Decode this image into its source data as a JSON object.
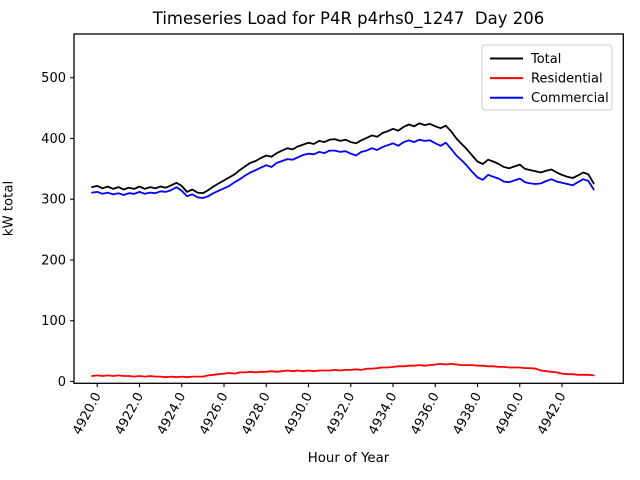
{
  "figure": {
    "title": "Timeseries Load for P4R p4rhs0_1247  Day 206",
    "xlabel": "Hour of Year",
    "ylabel": "kW total"
  },
  "chart_data": {
    "type": "line",
    "title": "Timeseries Load for P4R p4rhs0_1247  Day 206",
    "xlabel": "Hour of Year",
    "ylabel": "kW total",
    "xlim": [
      4918.9,
      4944.9
    ],
    "ylim": [
      -3,
      572
    ],
    "grid": false,
    "legend_position": "upper right",
    "yticks": [
      0,
      100,
      200,
      300,
      400,
      500
    ],
    "xticks": [
      4920,
      4922,
      4924,
      4926,
      4928,
      4930,
      4932,
      4934,
      4936,
      4938,
      4940,
      4942
    ],
    "xtick_labels": [
      "4920.0",
      "4922.0",
      "4924.0",
      "4926.0",
      "4928.0",
      "4930.0",
      "4932.0",
      "4934.0",
      "4936.0",
      "4938.0",
      "4940.0",
      "4942.0"
    ],
    "x": [
      4919.75,
      4920.0,
      4920.25,
      4920.5,
      4920.75,
      4921.0,
      4921.25,
      4921.5,
      4921.75,
      4922.0,
      4922.25,
      4922.5,
      4922.75,
      4923.0,
      4923.25,
      4923.5,
      4923.75,
      4924.0,
      4924.25,
      4924.5,
      4924.75,
      4925.0,
      4925.25,
      4925.5,
      4925.75,
      4926.0,
      4926.25,
      4926.5,
      4926.75,
      4927.0,
      4927.25,
      4927.5,
      4927.75,
      4928.0,
      4928.25,
      4928.5,
      4928.75,
      4929.0,
      4929.25,
      4929.5,
      4929.75,
      4930.0,
      4930.25,
      4930.5,
      4930.75,
      4931.0,
      4931.25,
      4931.5,
      4931.75,
      4932.0,
      4932.25,
      4932.5,
      4932.75,
      4933.0,
      4933.25,
      4933.5,
      4933.75,
      4934.0,
      4934.25,
      4934.5,
      4934.75,
      4935.0,
      4935.25,
      4935.5,
      4935.75,
      4936.0,
      4936.25,
      4936.5,
      4936.75,
      4937.0,
      4937.25,
      4937.5,
      4937.75,
      4938.0,
      4938.25,
      4938.5,
      4938.75,
      4939.0,
      4939.25,
      4939.5,
      4939.75,
      4940.0,
      4940.25,
      4940.5,
      4940.75,
      4941.0,
      4941.25,
      4941.5,
      4941.75,
      4942.0,
      4942.25,
      4942.5,
      4942.75,
      4943.0,
      4943.25,
      4943.5
    ],
    "series": [
      {
        "name": "Total",
        "color": "#000000",
        "values": [
          320,
          322,
          318,
          321,
          317,
          320,
          316,
          319,
          317,
          321,
          317,
          320,
          318,
          321,
          319,
          323,
          327,
          322,
          312,
          316,
          311,
          310,
          315,
          321,
          326,
          331,
          336,
          341,
          348,
          354,
          360,
          363,
          368,
          372,
          370,
          376,
          380,
          384,
          382,
          387,
          390,
          393,
          391,
          396,
          394,
          398,
          399,
          396,
          398,
          394,
          392,
          397,
          401,
          405,
          403,
          409,
          412,
          416,
          413,
          419,
          423,
          420,
          425,
          422,
          424,
          420,
          417,
          421,
          412,
          400,
          391,
          382,
          372,
          362,
          358,
          365,
          362,
          358,
          353,
          351,
          354,
          357,
          350,
          348,
          346,
          344,
          347,
          349,
          344,
          340,
          337,
          335,
          339,
          344,
          341,
          326
        ]
      },
      {
        "name": "Residential",
        "color": "#ff0000",
        "values": [
          9,
          10,
          9,
          10,
          9,
          10,
          9,
          9,
          8,
          9,
          8,
          9,
          8,
          8,
          7,
          8,
          7,
          8,
          7,
          8,
          8,
          8,
          10,
          11,
          12,
          13,
          14,
          13,
          15,
          15,
          16,
          15,
          16,
          16,
          17,
          16,
          17,
          18,
          17,
          18,
          17,
          18,
          17,
          18,
          18,
          18,
          19,
          18,
          19,
          19,
          20,
          19,
          21,
          21,
          22,
          23,
          23,
          24,
          25,
          25,
          26,
          26,
          27,
          26,
          27,
          28,
          29,
          28,
          29,
          28,
          27,
          27,
          27,
          26,
          26,
          25,
          25,
          24,
          24,
          23,
          23,
          23,
          22,
          22,
          21,
          18,
          17,
          16,
          15,
          13,
          12,
          12,
          11,
          11,
          11,
          10
        ]
      },
      {
        "name": "Commercial",
        "color": "#0000ff",
        "values": [
          311,
          312,
          309,
          311,
          308,
          310,
          307,
          310,
          309,
          312,
          309,
          311,
          310,
          313,
          312,
          315,
          320,
          314,
          305,
          308,
          303,
          302,
          305,
          310,
          314,
          318,
          322,
          328,
          333,
          339,
          344,
          348,
          352,
          356,
          353,
          360,
          363,
          366,
          365,
          369,
          373,
          375,
          374,
          378,
          376,
          380,
          380,
          378,
          379,
          375,
          372,
          378,
          380,
          384,
          381,
          386,
          389,
          392,
          388,
          394,
          397,
          394,
          398,
          396,
          397,
          392,
          388,
          393,
          383,
          372,
          364,
          355,
          345,
          336,
          332,
          340,
          337,
          334,
          329,
          328,
          331,
          334,
          328,
          326,
          325,
          326,
          330,
          333,
          329,
          327,
          325,
          323,
          328,
          333,
          330,
          316
        ]
      }
    ]
  },
  "colors": {
    "axis": "#000000",
    "background": "#ffffff",
    "legend_border": "#cccccc"
  }
}
